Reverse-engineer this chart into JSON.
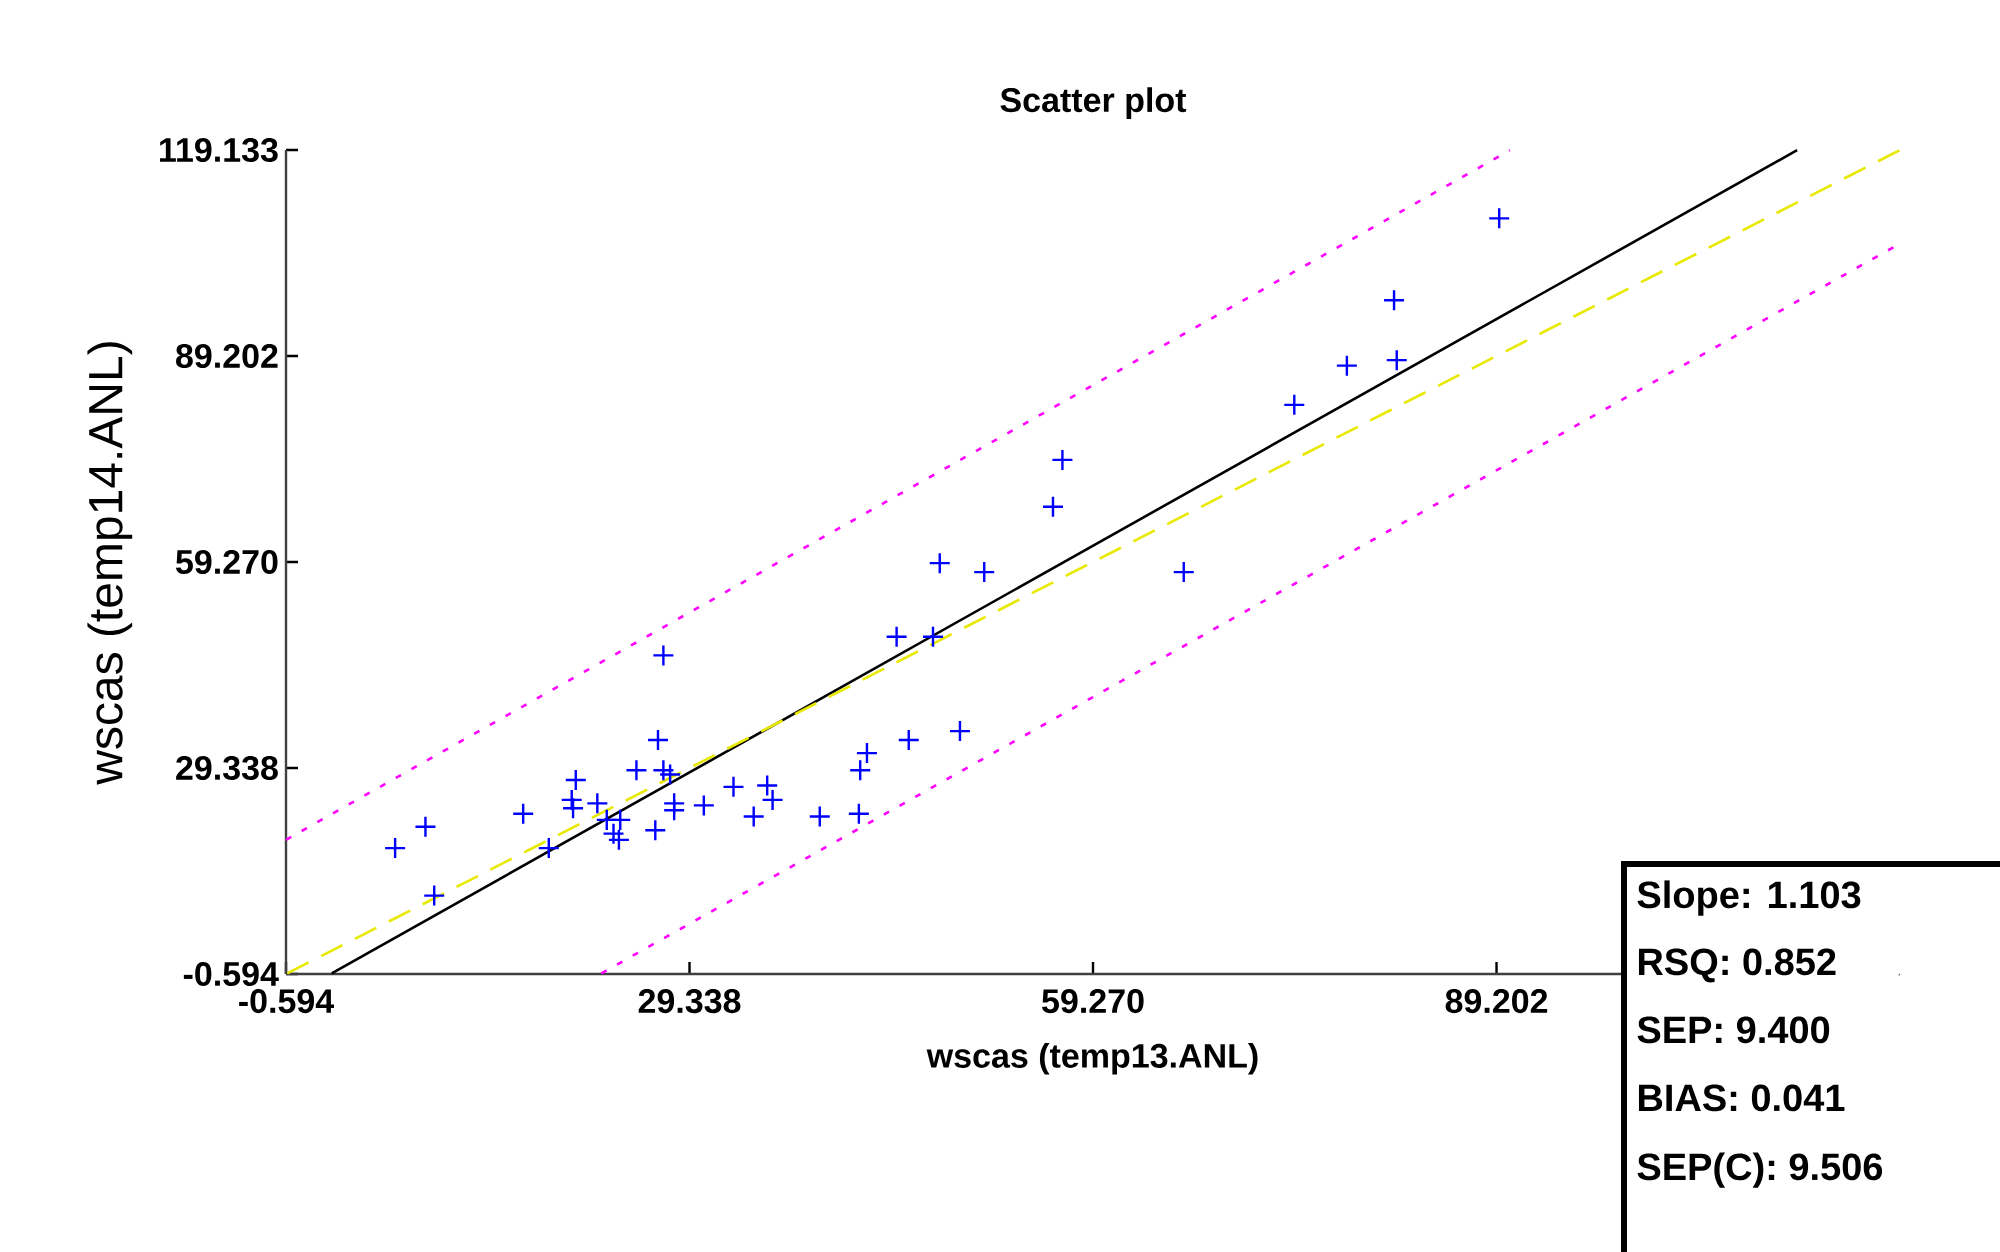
{
  "chart_data": {
    "type": "scatter",
    "title": "Scatter plot",
    "xlabel": "wscas (temp13.ANL)",
    "ylabel": "wscas (temp14.ANL)",
    "xlim": [
      -0.594,
      119.133
    ],
    "ylim": [
      -0.594,
      119.133
    ],
    "xticks": [
      -0.594,
      29.338,
      {
        "value": 59.27,
        "label": "59.270"
      },
      89.202
    ],
    "yticks": [
      -0.594,
      29.338,
      {
        "value": 59.27,
        "label": "59.270"
      },
      89.202,
      119.133
    ],
    "grid": false,
    "marker": "cross",
    "series": [
      {
        "color": "#0000ff",
        "x": [
          7.5,
          9.75,
          10.4,
          17.0,
          18.9,
          20.9,
          20.6,
          20.7,
          22.5,
          23.2,
          24.2,
          23.7,
          24.1,
          27.0,
          25.4,
          27.4,
          27.9,
          28.2,
          28.2,
          26.8,
          27.4,
          30.4,
          32.6,
          35.1,
          35.5,
          34.1,
          39.0,
          41.9,
          42.0,
          42.5,
          45.6,
          49.4,
          44.7,
          47.4,
          57.0,
          56.3,
          47.9,
          51.2,
          66.0,
          74.2,
          78.1,
          81.8,
          89.4,
          81.6
        ],
        "values": [
          17.7,
          20.8,
          10.8,
          22.7,
          17.7,
          27.6,
          24.7,
          23.5,
          24.2,
          21.8,
          21.8,
          19.8,
          18.9,
          33.4,
          29.0,
          29.0,
          28.4,
          24.2,
          23.2,
          20.3,
          45.7,
          23.9,
          26.6,
          26.8,
          24.7,
          22.3,
          22.3,
          22.7,
          29.0,
          31.5,
          33.4,
          34.7,
          48.4,
          48.4,
          74.1,
          67.3,
          59.1,
          57.8,
          57.8,
          82.1,
          87.8,
          88.6,
          109.2,
          97.3
        ]
      },
      {
        "type": "line",
        "color": "#000000",
        "line_style": "solid",
        "marker": "none",
        "x": [
          2.8,
          111.5
        ],
        "values": [
          -0.5,
          119.1
        ]
      },
      {
        "type": "line",
        "color": "#e8e800",
        "line_style": "dashed",
        "marker": "none",
        "x": [
          -0.5,
          119.1
        ],
        "values": [
          -0.5,
          119.1
        ]
      },
      {
        "type": "line",
        "color": "#ff00ff",
        "line_style": "dotted",
        "marker": "none",
        "x": [
          -0.594,
          90.2
        ],
        "values": [
          18.9,
          119.1
        ]
      },
      {
        "type": "line",
        "color": "#ff00ff",
        "line_style": "dotted",
        "marker": "none",
        "x": [
          22.8,
          119.1
        ],
        "values": [
          -0.5,
          105.5
        ]
      }
    ],
    "annotations": [
      "Slope: 1.103",
      "RSQ: 0.852",
      "SEP: 9.400",
      "BIAS: 0.041",
      "SEP(C): 9.506"
    ]
  }
}
